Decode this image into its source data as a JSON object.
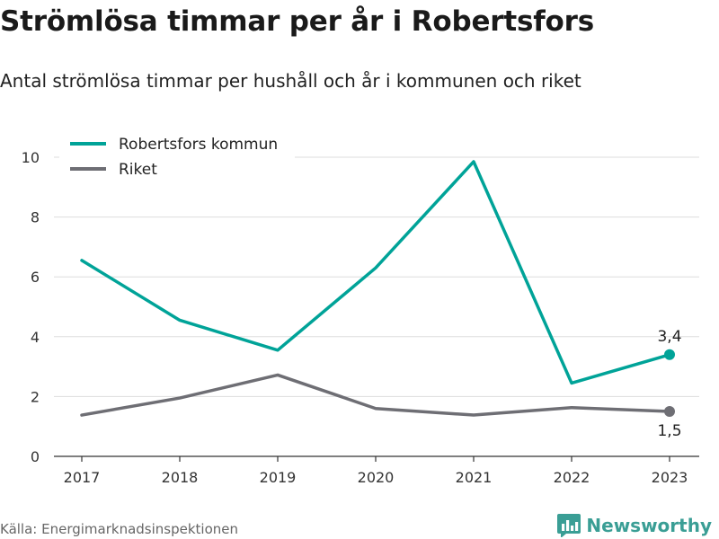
{
  "header": {
    "title": "Strömlösa timmar per år i Robertsfors",
    "subtitle": "Antal strömlösa timmar per hushåll och år i kommunen och riket"
  },
  "footer": {
    "source": "Källa: Energimarknadsinspektionen",
    "brand": "Newsworthy",
    "brand_icon": "newsworthy-logo-icon"
  },
  "chart_data": {
    "type": "line",
    "x": [
      "2017",
      "2018",
      "2019",
      "2020",
      "2021",
      "2022",
      "2023"
    ],
    "ylim": [
      0,
      10
    ],
    "yticks": [
      "0",
      "2",
      "4",
      "6",
      "8",
      "10"
    ],
    "grid": true,
    "legend_position": "top-left",
    "series": [
      {
        "name": "Robertsfors kommun",
        "color": "#00a398",
        "values": [
          6.55,
          4.55,
          3.55,
          6.3,
          9.85,
          2.45,
          3.4
        ],
        "end_label": "3,4"
      },
      {
        "name": "Riket",
        "color": "#6e6e74",
        "values": [
          1.38,
          1.95,
          2.72,
          1.6,
          1.38,
          1.63,
          1.5
        ],
        "end_label": "1,5"
      }
    ]
  }
}
